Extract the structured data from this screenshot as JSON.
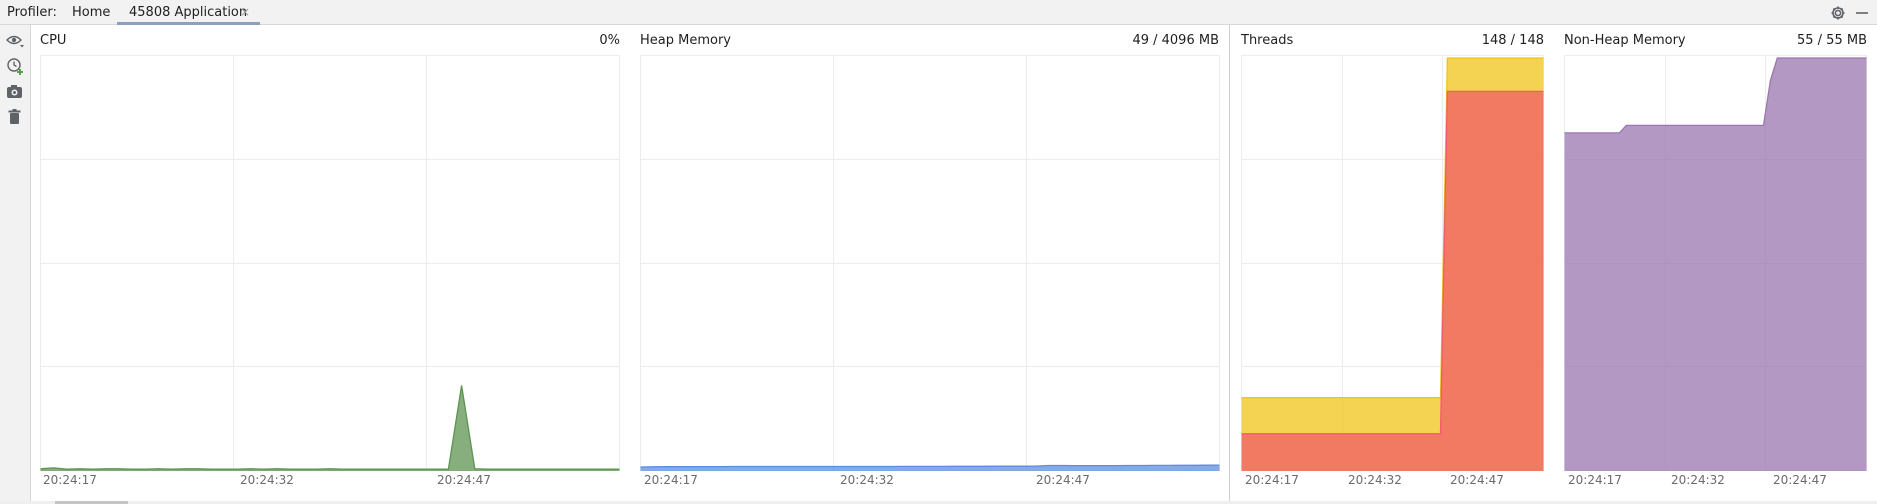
{
  "header": {
    "profiler_label": "Profiler:",
    "tabs": [
      {
        "label": "Home",
        "active": false
      },
      {
        "label": "45808 Application",
        "active": true,
        "close_glyph": "×"
      }
    ],
    "icons": [
      "settings-gear-icon",
      "minimize-icon"
    ]
  },
  "toolbar": {
    "tools": [
      "view-options-icon",
      "add-timer-icon",
      "screenshot-camera-icon",
      "trash-icon"
    ]
  },
  "panels": {
    "cpu": {
      "title": "CPU",
      "value": "0%"
    },
    "heap": {
      "title": "Heap Memory",
      "value": "49 / 4096 MB"
    },
    "threads": {
      "title": "Threads",
      "value": "148 / 148"
    },
    "nonheap": {
      "title": "Non-Heap Memory",
      "value": "55 / 55 MB"
    }
  },
  "time_labels": [
    "20:24:17",
    "20:24:32",
    "20:24:47"
  ],
  "chart_data": [
    {
      "type": "area",
      "name": "CPU",
      "x": [
        0,
        1,
        2,
        3,
        4,
        5,
        6,
        7,
        8,
        9,
        10,
        11,
        12,
        13,
        14,
        15,
        16,
        17,
        18,
        19,
        20,
        21,
        22,
        23,
        24,
        25,
        26,
        27,
        28,
        29,
        30,
        31,
        32,
        33,
        34,
        35,
        36,
        37,
        38,
        39,
        40,
        41,
        42,
        43,
        44
      ],
      "series": [
        {
          "color": "#5d9452",
          "values": [
            0.3,
            0.5,
            0.2,
            0.3,
            0.2,
            0.3,
            0.3,
            0.2,
            0.2,
            0.3,
            0.2,
            0.3,
            0.3,
            0.2,
            0.2,
            0.2,
            0.3,
            0.2,
            0.3,
            0.2,
            0.2,
            0.2,
            0.3,
            0.2,
            0.2,
            0.2,
            0.2,
            0.2,
            0.2,
            0.2,
            0.2,
            0.2,
            20.5,
            0.3,
            0.2,
            0.2,
            0.2,
            0.2,
            0.2,
            0.2,
            0.2,
            0.2,
            0.2,
            0.2,
            0.2
          ]
        }
      ],
      "ylim": [
        0,
        100
      ],
      "grid": true
    },
    {
      "type": "area",
      "name": "Heap Memory",
      "x": [
        0,
        1,
        2,
        3,
        4,
        5,
        6,
        7,
        8,
        9,
        10,
        11,
        12,
        13,
        14,
        15,
        16,
        17,
        18,
        19,
        20,
        21,
        22,
        23,
        24,
        25,
        26,
        27,
        28,
        29,
        30,
        31,
        32,
        33,
        34,
        35,
        36,
        37,
        38,
        39,
        40,
        41,
        42,
        43,
        44
      ],
      "series": [
        {
          "color": "#5b8ee0",
          "values": [
            30,
            32,
            33,
            33,
            34,
            34,
            34,
            35,
            35,
            35,
            35,
            35,
            35,
            35,
            35,
            35,
            35,
            35,
            35,
            35,
            36,
            36,
            36,
            36,
            37,
            37,
            37,
            38,
            38,
            38,
            38,
            45,
            45,
            44,
            44,
            44,
            44,
            45,
            45,
            46,
            46,
            47,
            47,
            48,
            49
          ]
        }
      ],
      "ylim": [
        0,
        4096
      ],
      "grid": true
    },
    {
      "type": "area",
      "name": "Threads",
      "x": [
        0,
        1,
        2,
        3,
        4,
        5,
        6,
        7,
        8,
        9,
        10,
        11,
        12,
        13,
        14,
        15,
        16,
        17,
        18,
        19,
        20,
        21,
        22,
        23,
        24,
        25,
        26,
        27,
        28,
        29,
        30,
        31,
        32,
        33,
        34,
        35,
        36,
        37,
        38,
        39,
        40,
        41,
        42,
        43,
        44
      ],
      "series": [
        {
          "color": "#f0c419",
          "values": [
            26,
            26,
            26,
            26,
            26,
            26,
            26,
            26,
            26,
            26,
            26,
            26,
            26,
            26,
            26,
            26,
            26,
            26,
            26,
            26,
            26,
            26,
            26,
            26,
            26,
            26,
            26,
            26,
            26,
            26,
            148,
            148,
            148,
            148,
            148,
            148,
            148,
            148,
            148,
            148,
            148,
            148,
            148,
            148,
            148
          ]
        },
        {
          "color": "#f25c68",
          "values": [
            13,
            13,
            13,
            13,
            13,
            13,
            13,
            13,
            13,
            13,
            13,
            13,
            13,
            13,
            13,
            13,
            13,
            13,
            13,
            13,
            13,
            13,
            13,
            13,
            13,
            13,
            13,
            13,
            13,
            13,
            136,
            136,
            136,
            136,
            136,
            136,
            136,
            136,
            136,
            136,
            136,
            136,
            136,
            136,
            136
          ]
        }
      ],
      "ylim": [
        0,
        148
      ],
      "grid": true
    },
    {
      "type": "area",
      "name": "Non-Heap Memory",
      "x": [
        0,
        1,
        2,
        3,
        4,
        5,
        6,
        7,
        8,
        9,
        10,
        11,
        12,
        13,
        14,
        15,
        16,
        17,
        18,
        19,
        20,
        21,
        22,
        23,
        24,
        25,
        26,
        27,
        28,
        29,
        30,
        31,
        32,
        33,
        34,
        35,
        36,
        37,
        38,
        39,
        40,
        41,
        42,
        43,
        44
      ],
      "series": [
        {
          "color": "#9b76b0",
          "values": [
            45,
            45,
            45,
            45,
            45,
            45,
            45,
            45,
            45,
            46,
            46,
            46,
            46,
            46,
            46,
            46,
            46,
            46,
            46,
            46,
            46,
            46,
            46,
            46,
            46,
            46,
            46,
            46,
            46,
            46,
            52,
            55,
            55,
            55,
            55,
            55,
            55,
            55,
            55,
            55,
            55,
            55,
            55,
            55,
            55
          ]
        }
      ],
      "ylim": [
        0,
        55
      ],
      "grid": true
    }
  ]
}
